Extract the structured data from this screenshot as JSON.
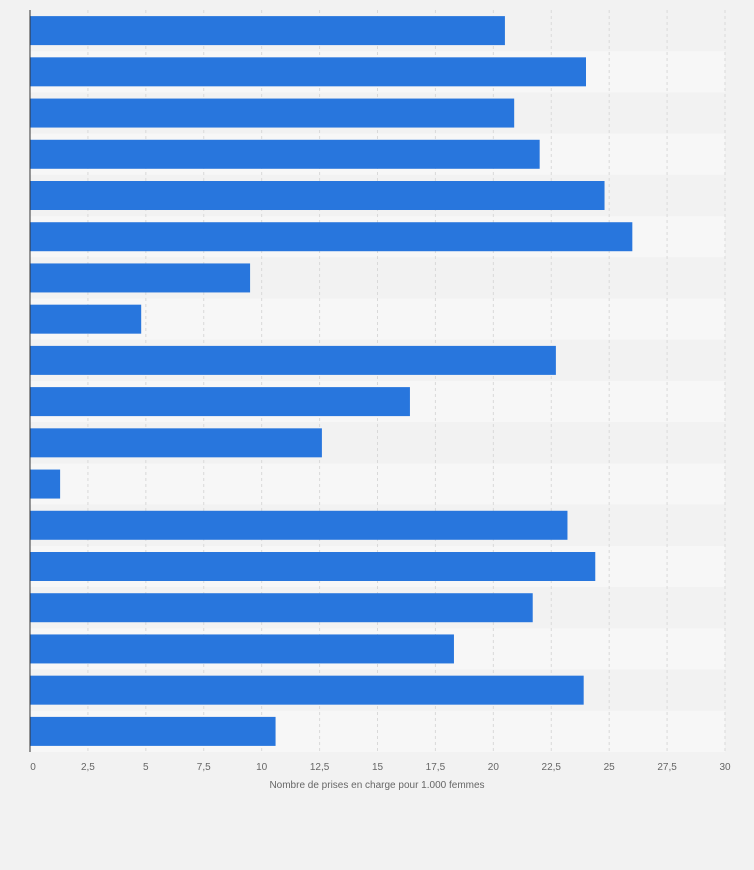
{
  "chart_data": {
    "type": "bar",
    "orientation": "horizontal",
    "title": "",
    "xlabel": "Nombre de prises en charge pour 1.000 femmes",
    "ylabel": "",
    "categories": [
      "",
      "",
      "",
      "",
      "",
      "",
      "",
      "",
      "",
      "",
      "",
      "",
      "",
      "",
      "",
      "",
      "",
      ""
    ],
    "values": [
      20.5,
      24.0,
      20.9,
      22.0,
      24.8,
      26.0,
      9.5,
      4.8,
      22.7,
      16.4,
      12.6,
      1.3,
      23.2,
      24.4,
      21.7,
      18.3,
      23.9,
      10.6
    ],
    "xlim": [
      0,
      30
    ],
    "xticks": [
      0,
      2.5,
      5,
      7.5,
      10,
      12.5,
      15,
      17.5,
      20,
      22.5,
      25,
      27.5,
      30
    ],
    "xtick_labels": [
      "0",
      "2,5",
      "5",
      "7,5",
      "10",
      "12,5",
      "15",
      "17,5",
      "20",
      "22,5",
      "25",
      "27,5",
      "30"
    ],
    "grid": true,
    "legend": "none",
    "colors": {
      "bar": "#2876dd",
      "band_a": "#f2f2f2",
      "band_b": "#f7f7f7",
      "grid": "#d9d9d9"
    }
  }
}
